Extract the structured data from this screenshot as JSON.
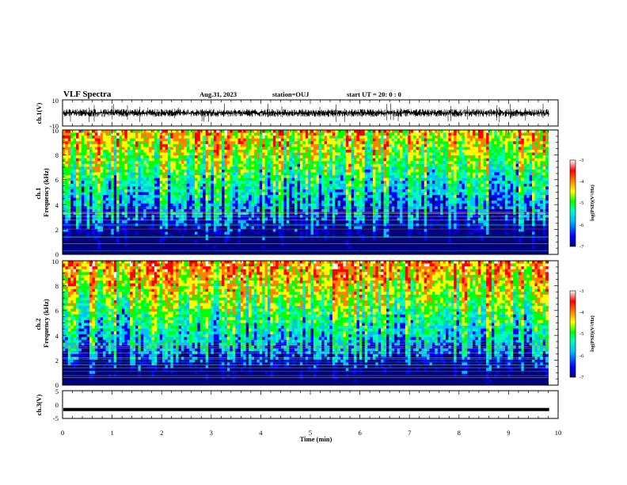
{
  "header": {
    "title": "VLF Spectra",
    "date": "Aug.31, 2023",
    "station": "station=OUJ",
    "start": "start  UT =   20: 0  : 0"
  },
  "chart_data": [
    {
      "type": "line",
      "panel": "ch1-waveform",
      "ylabel": "ch.1(V)",
      "ylim": [
        -10,
        10
      ],
      "yticks": [
        "10",
        "-10"
      ],
      "xlim": [
        0,
        10
      ],
      "line_color": "#000000"
    },
    {
      "type": "heatmap",
      "panel": "ch1-spectrogram",
      "ylabel": "ch.1\nFrequency  (kHz)",
      "ylim": [
        0,
        10
      ],
      "yticks": [
        "0",
        "2",
        "4",
        "6",
        "8",
        "10"
      ],
      "xlim": [
        0,
        9.8
      ],
      "colorbar": {
        "label": "log(PSD)(V²/Hz)",
        "min": -7,
        "max": -3,
        "ticks": [
          "-3",
          "-4",
          "-5",
          "-6",
          "-7"
        ]
      }
    },
    {
      "type": "heatmap",
      "panel": "ch2-spectrogram",
      "ylabel": "ch.2\nFrequency  (kHz)",
      "ylim": [
        0,
        10
      ],
      "yticks": [
        "0",
        "2",
        "4",
        "6",
        "8",
        "10"
      ],
      "xlim": [
        0,
        9.8
      ],
      "colorbar": {
        "label": "log(PSD)(V²/Hz)",
        "min": -7,
        "max": -3,
        "ticks": [
          "-3",
          "-4",
          "-5",
          "-6",
          "-7"
        ]
      }
    },
    {
      "type": "line",
      "panel": "ch3-signal",
      "ylabel": "ch.3(V)",
      "ylim": [
        -5,
        5
      ],
      "yticks": [
        "5",
        "0",
        "-5"
      ],
      "xlim": [
        0,
        10
      ],
      "y_value": -1.8,
      "line_color": "#000000"
    }
  ],
  "xaxis": {
    "label": "Time  (min)",
    "ticks": [
      "0",
      "1",
      "2",
      "3",
      "4",
      "5",
      "6",
      "7",
      "8",
      "9",
      "10"
    ],
    "range": [
      0,
      10
    ]
  },
  "colors": {
    "colormap": [
      "#000080",
      "#0000ff",
      "#00c0ff",
      "#00ffb0",
      "#00ff00",
      "#ffff00",
      "#ff8000",
      "#ff0000",
      "#ffffff"
    ]
  }
}
